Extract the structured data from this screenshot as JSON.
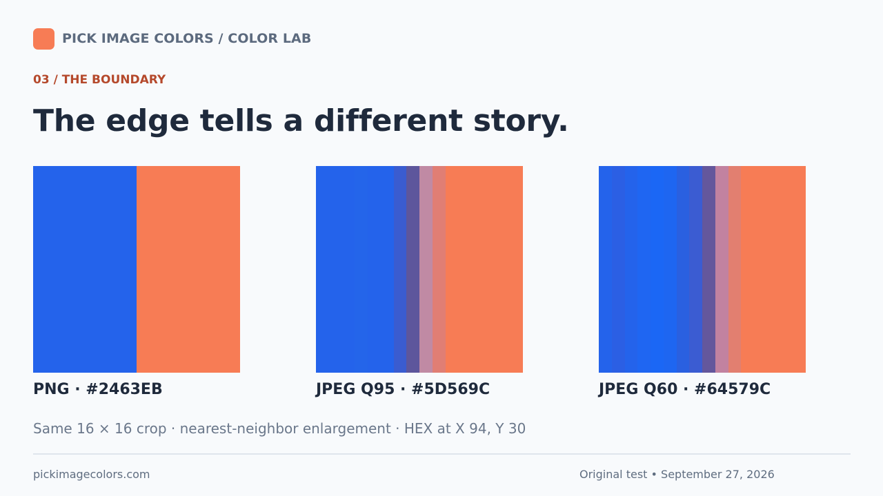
{
  "brand": {
    "title": "PICK IMAGE COLORS / COLOR LAB",
    "logo_color": "#f77c55"
  },
  "section": {
    "eyebrow": "03 / THE BOUNDARY",
    "headline": "The edge tells a different story."
  },
  "samples": [
    {
      "caption": "PNG · #2463EB",
      "bands": [
        "#2463eb",
        "#2463eb",
        "#2463eb",
        "#2463eb",
        "#2463eb",
        "#2463eb",
        "#2463eb",
        "#2463eb",
        "#f77c55",
        "#f77c55",
        "#f77c55",
        "#f77c55",
        "#f77c55",
        "#f77c55",
        "#f77c55",
        "#f77c55"
      ]
    },
    {
      "caption": "JPEG Q95 · #5D569C",
      "bands": [
        "#2463eb",
        "#2463eb",
        "#2463eb",
        "#2465ea",
        "#2463eb",
        "#2463eb",
        "#3a5cd0",
        "#5d569c",
        "#c08aa4",
        "#e07e74",
        "#f77c55",
        "#f77c55",
        "#f77c55",
        "#f77c55",
        "#f77c55",
        "#f77c55"
      ]
    },
    {
      "caption": "JPEG Q60 · #64579C",
      "bands": [
        "#2463eb",
        "#2b5fe4",
        "#2463eb",
        "#1f66f2",
        "#1b67f5",
        "#1e66f1",
        "#2a60e0",
        "#3b5cd2",
        "#64579c",
        "#c282a0",
        "#e27f70",
        "#f77c55",
        "#f77c55",
        "#f77c55",
        "#f77c55",
        "#f77c55"
      ]
    }
  ],
  "note": "Same 16 × 16 crop · nearest-neighbor enlargement · HEX at X 94, Y 30",
  "footer": {
    "site": "pickimagecolors.com",
    "meta": "Original test • September 27, 2026"
  }
}
